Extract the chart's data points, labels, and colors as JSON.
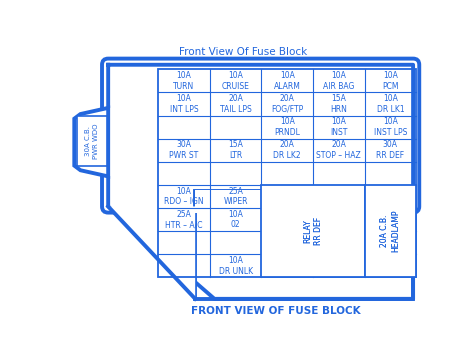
{
  "title_top": "Front View Of Fuse Block",
  "title_bottom": "FRONT VIEW OF FUSE BLOCK",
  "bg_color": "#ffffff",
  "blue": "#2266dd",
  "figsize": [
    4.74,
    3.6
  ],
  "dpi": 100,
  "fuse_cells": [
    {
      "row": 0,
      "col": 0,
      "text": "10A\nTURN"
    },
    {
      "row": 0,
      "col": 1,
      "text": "10A\nCRUISE"
    },
    {
      "row": 0,
      "col": 2,
      "text": "10A\nALARM"
    },
    {
      "row": 0,
      "col": 3,
      "text": "10A\nAIR BAG"
    },
    {
      "row": 0,
      "col": 4,
      "text": "10A\nPCM"
    },
    {
      "row": 1,
      "col": 0,
      "text": "10A\nINT LPS"
    },
    {
      "row": 1,
      "col": 1,
      "text": "20A\nTAIL LPS"
    },
    {
      "row": 1,
      "col": 2,
      "text": "20A\nFOG/FTP"
    },
    {
      "row": 1,
      "col": 3,
      "text": "15A\nHRN"
    },
    {
      "row": 1,
      "col": 4,
      "text": "10A\nDR LK1"
    },
    {
      "row": 2,
      "col": 2,
      "text": "10A\nPRNDL"
    },
    {
      "row": 2,
      "col": 3,
      "text": "10A\nINST"
    },
    {
      "row": 2,
      "col": 4,
      "text": "10A\nINST LPS"
    },
    {
      "row": 3,
      "col": 0,
      "text": "30A\nPWR ST"
    },
    {
      "row": 3,
      "col": 1,
      "text": "15A\nLTR"
    },
    {
      "row": 3,
      "col": 2,
      "text": "20A\nDR LK2"
    },
    {
      "row": 3,
      "col": 3,
      "text": "20A\nSTOP – HAZ"
    },
    {
      "row": 3,
      "col": 4,
      "text": "30A\nRR DEF"
    },
    {
      "row": 5,
      "col": 0,
      "text": "10A\nRDO – IGN"
    },
    {
      "row": 5,
      "col": 1,
      "text": "25A\nWIPER"
    },
    {
      "row": 6,
      "col": 0,
      "text": "25A\nHTR – A/C"
    },
    {
      "row": 6,
      "col": 1,
      "text": "10A\n02"
    },
    {
      "row": 8,
      "col": 1,
      "text": "10A\nDR UNLK"
    }
  ],
  "side_box_text": "30A C.B.\nPWR WDO",
  "relay_box_text": "RELAY\nRR DEF",
  "headlamp_box_text": "20A C.B.\nHEADLAMP"
}
